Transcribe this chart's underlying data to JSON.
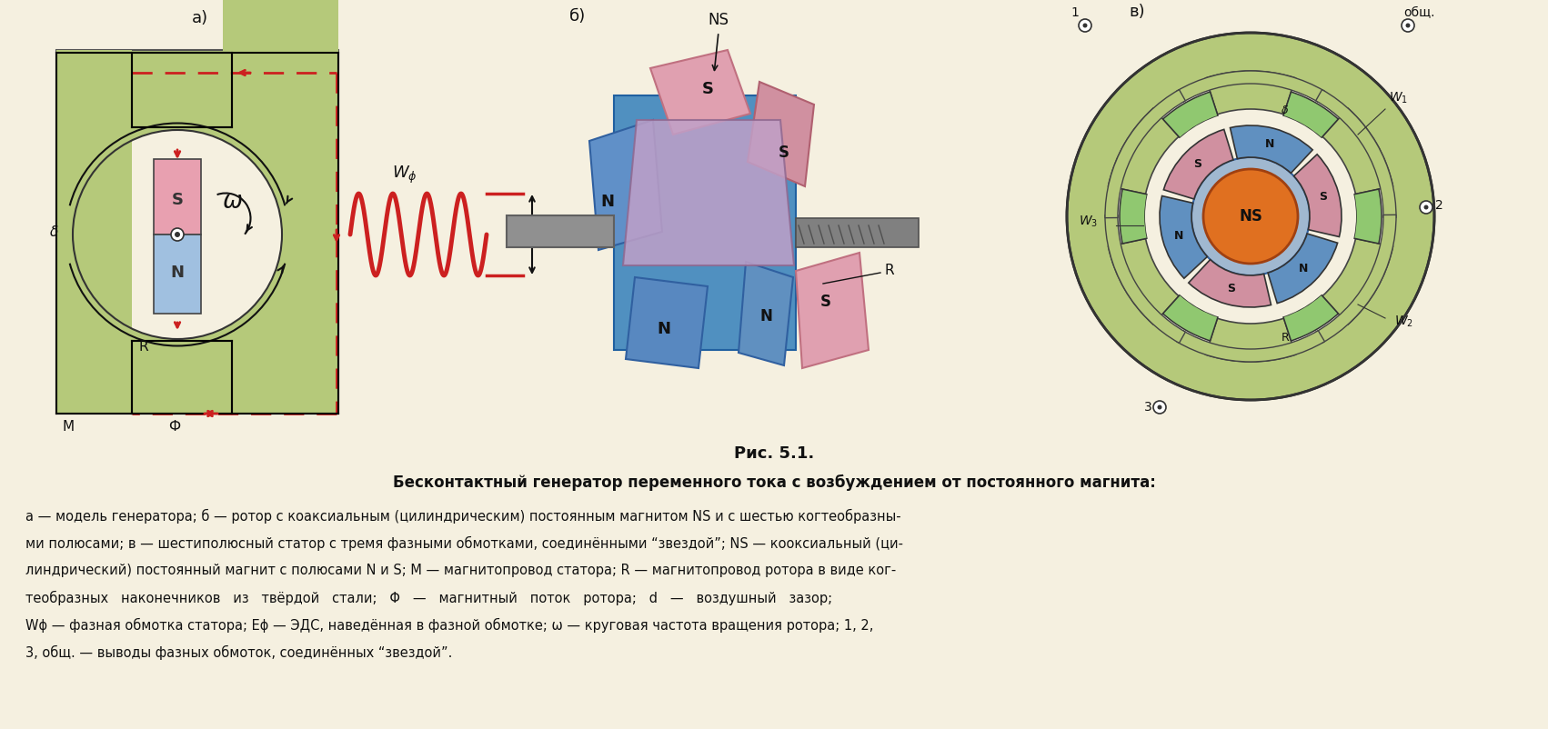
{
  "bg_color": "#f5f0e0",
  "fig_caption": "Рис. 5.1.",
  "fig_title": "Бесконтактный генератор переменного тока с возбуждением от постоянного магнита:",
  "fig_text_line1": "а — модель генератора; б — ротор с коаксиальным (цилиндрическим) постоянным магнитом NS и с шестью когтеобразны-",
  "fig_text_line2": "ми полюсами; в — шестиполюсный статор с тремя фазными обмотками, соединёнными “звездой”; NS — кооксиальный (ци-",
  "fig_text_line3": "линдрический) постоянный магнит с полюсами N и S; М — магнитопровод статора; R — магнитопровод ротора в виде ког-",
  "fig_text_line4": "теобразных   наконечников   из   твёрдой   стали;   Φ   —   магнитный   поток   ротора;   d   —   воздушный   зазор;",
  "fig_text_line5": "Wϕ — фазная обмотка статора; Еϕ — ЭДС, наведённая в фазной обмотке; ω — круговая частота вращения ротора; 1, 2,",
  "fig_text_line6": "3, общ. — выводы фазных обмоток, соединённых “звездой”.",
  "green_color": "#b5c97a",
  "pink_color": "#e8a0b0",
  "blue_color": "#90b8d8",
  "red_color": "#cc2020",
  "orange_color": "#e07020"
}
